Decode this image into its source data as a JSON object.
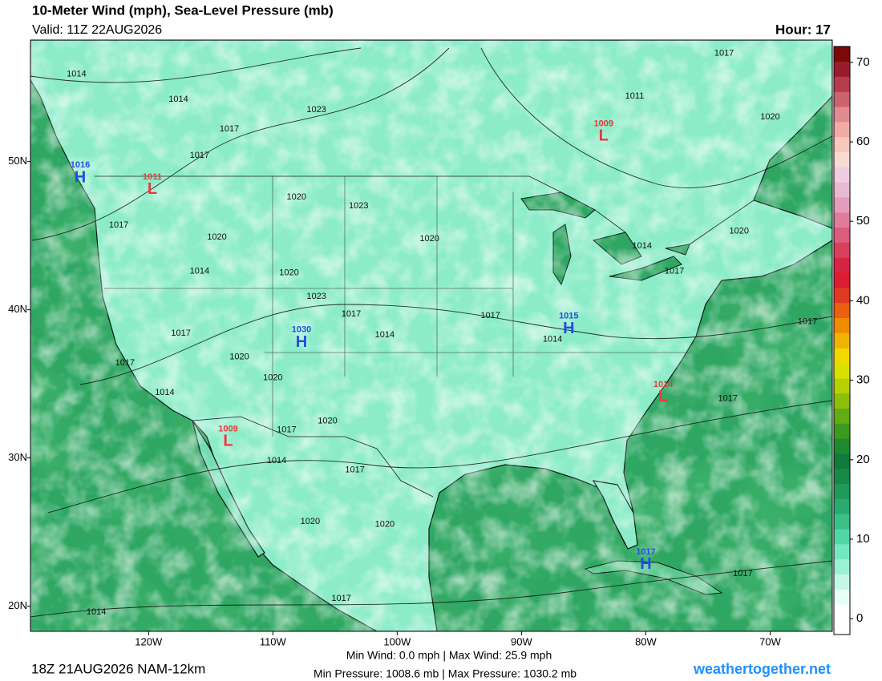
{
  "header": {
    "title": "10-Meter Wind (mph), Sea-Level Pressure (mb)",
    "valid": "Valid: 11Z 22AUG2026",
    "hour": "Hour: 17"
  },
  "map": {
    "lon_lim": [
      -129.5,
      -65
    ],
    "lat_lim": [
      18.3,
      58.2
    ],
    "lon_ticks": [
      {
        "value": -120,
        "label": "120W"
      },
      {
        "value": -110,
        "label": "110W"
      },
      {
        "value": -100,
        "label": "100W"
      },
      {
        "value": -90,
        "label": "90W"
      },
      {
        "value": -80,
        "label": "80W"
      },
      {
        "value": -70,
        "label": "70W"
      }
    ],
    "lat_ticks": [
      {
        "value": 50,
        "label": "50N"
      },
      {
        "value": 40,
        "label": "40N"
      },
      {
        "value": 30,
        "label": "30N"
      },
      {
        "value": 20,
        "label": "20N"
      }
    ],
    "center_colors": {
      "H": "#1f4fe0",
      "L": "#e83a3a"
    },
    "centers": [
      {
        "kind": "H",
        "label": "1016",
        "lon": -125.5,
        "lat": 49.0
      },
      {
        "kind": "L",
        "label": "1011",
        "lon": -119.7,
        "lat": 48.2
      },
      {
        "kind": "L",
        "label": "1009",
        "lon": -83.4,
        "lat": 51.8
      },
      {
        "kind": "H",
        "label": "1015",
        "lon": -86.2,
        "lat": 38.8
      },
      {
        "kind": "H",
        "label": "1030",
        "lon": -107.7,
        "lat": 37.9
      },
      {
        "kind": "L",
        "label": "1014",
        "lon": -78.6,
        "lat": 34.2
      },
      {
        "kind": "L",
        "label": "1009",
        "lon": -113.6,
        "lat": 31.2
      },
      {
        "kind": "H",
        "label": "1017",
        "lon": -80.0,
        "lat": 22.9
      }
    ],
    "isobar_labels": [
      {
        "label": "1014",
        "lon": -125.8,
        "lat": 55.9
      },
      {
        "label": "1014",
        "lon": -117.6,
        "lat": 54.2
      },
      {
        "label": "1017",
        "lon": -113.5,
        "lat": 52.2
      },
      {
        "label": "1017",
        "lon": -115.9,
        "lat": 50.4
      },
      {
        "label": "1023",
        "lon": -106.5,
        "lat": 53.5
      },
      {
        "label": "1017",
        "lon": -73.7,
        "lat": 57.3
      },
      {
        "label": "1011",
        "lon": -80.9,
        "lat": 54.4
      },
      {
        "label": "1020",
        "lon": -70.0,
        "lat": 53.0
      },
      {
        "label": "1020",
        "lon": -108.1,
        "lat": 47.6
      },
      {
        "label": "1023",
        "lon": -103.1,
        "lat": 47.0
      },
      {
        "label": "1020",
        "lon": -97.4,
        "lat": 44.8
      },
      {
        "label": "1020",
        "lon": -114.5,
        "lat": 44.9
      },
      {
        "label": "1017",
        "lon": -122.4,
        "lat": 45.7
      },
      {
        "label": "1014",
        "lon": -115.9,
        "lat": 42.6
      },
      {
        "label": "1020",
        "lon": -108.7,
        "lat": 42.5
      },
      {
        "label": "1023",
        "lon": -106.5,
        "lat": 40.9
      },
      {
        "label": "1017",
        "lon": -103.7,
        "lat": 39.7
      },
      {
        "label": "1014",
        "lon": -101.0,
        "lat": 38.3
      },
      {
        "label": "1017",
        "lon": -92.5,
        "lat": 39.6
      },
      {
        "label": "1017",
        "lon": -117.4,
        "lat": 38.4
      },
      {
        "label": "1020",
        "lon": -112.7,
        "lat": 36.8
      },
      {
        "label": "1017",
        "lon": -121.9,
        "lat": 36.4
      },
      {
        "label": "1014",
        "lon": -118.7,
        "lat": 34.4
      },
      {
        "label": "1020",
        "lon": -110.0,
        "lat": 35.4
      },
      {
        "label": "1020",
        "lon": -105.6,
        "lat": 32.5
      },
      {
        "label": "1017",
        "lon": -108.9,
        "lat": 31.9
      },
      {
        "label": "1014",
        "lon": -109.7,
        "lat": 29.8
      },
      {
        "label": "1017",
        "lon": -103.4,
        "lat": 29.2
      },
      {
        "label": "1020",
        "lon": -107.0,
        "lat": 25.7
      },
      {
        "label": "1020",
        "lon": -101.0,
        "lat": 25.5
      },
      {
        "label": "1017",
        "lon": -77.7,
        "lat": 42.6
      },
      {
        "label": "1020",
        "lon": -72.5,
        "lat": 45.3
      },
      {
        "label": "1017",
        "lon": -67.0,
        "lat": 39.2
      },
      {
        "label": "1017",
        "lon": -73.4,
        "lat": 34.0
      },
      {
        "label": "1017",
        "lon": -72.2,
        "lat": 22.2
      },
      {
        "label": "1014",
        "lon": -124.2,
        "lat": 19.6
      },
      {
        "label": "1017",
        "lon": -104.5,
        "lat": 20.5
      },
      {
        "label": "1014",
        "lon": -80.3,
        "lat": 44.3
      },
      {
        "label": "1014",
        "lon": -87.5,
        "lat": 38.0
      }
    ]
  },
  "colorbar": {
    "lim": [
      -2,
      72
    ],
    "ticks": [
      0,
      10,
      20,
      30,
      40,
      50,
      60,
      70
    ],
    "colors": [
      "#ffffff",
      "#ffffff",
      "#e8fff6",
      "#c4f7e6",
      "#9cf0d6",
      "#74e6c2",
      "#52d6a6",
      "#3cc08a",
      "#2aaa70",
      "#1f9a5a",
      "#178a48",
      "#127a3a",
      "#1e8a2e",
      "#3c9a20",
      "#62ac14",
      "#8cbe0a",
      "#b8d000",
      "#dce000",
      "#f0d800",
      "#f0b400",
      "#f08c00",
      "#e86010",
      "#e03a20",
      "#dc1c30",
      "#d82444",
      "#d8405c",
      "#dc5c7c",
      "#e07c9c",
      "#e49cbc",
      "#e8b8d4",
      "#f0cce0",
      "#f8dcd4",
      "#f8c8bc",
      "#f0aca4",
      "#e08c90",
      "#cc6470",
      "#b43c4c",
      "#9a1c2c",
      "#7c0808"
    ]
  },
  "footer": {
    "run": "18Z 21AUG2026 NAM-12km",
    "wind": "Min Wind:  0.0 mph | Max Wind: 25.9 mph",
    "pressure": "Min Pressure: 1008.6 mb | Max Pressure: 1030.2 mb",
    "site": "weathertogether.net"
  }
}
